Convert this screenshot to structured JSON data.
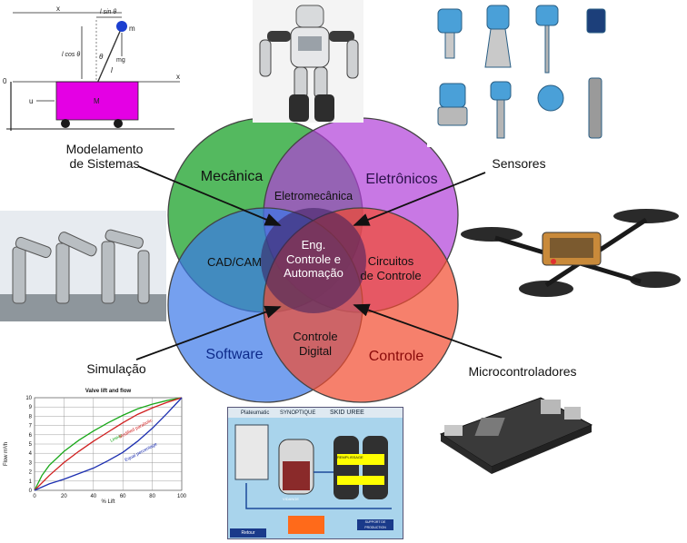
{
  "venn": {
    "mecanica": "Mecânica",
    "eletronicos": "Eletrônicos",
    "software": "Software",
    "controle": "Controle",
    "eletromecanica": "Eletromecânica",
    "cadcam": "CAD/CAM",
    "circuitos_1": "Circuitos",
    "circuitos_2": "de Controle",
    "controle_digital_1": "Controle",
    "controle_digital_2": "Digital",
    "center_1": "Eng.",
    "center_2": "Controle e",
    "center_3": "Automação",
    "colors": {
      "mecanica": "#2eaa3c",
      "eletronicos": "#b13fd9",
      "software": "#3a78e8",
      "controle": "#f24a2e"
    }
  },
  "callouts": {
    "modelamento_1": "Modelamento",
    "modelamento_2": "de Sistemas",
    "sensores": "Sensores",
    "simulacao": "Simulação",
    "microcontroladores": "Microcontroladores"
  },
  "cart_diagram": {
    "x_label": "x",
    "lsin_label": "l sin θ",
    "lcos_label": "l cos θ",
    "m_label": "m",
    "mg_label": "mg",
    "theta_label": "θ",
    "l_label": "l",
    "u_label": "u",
    "M_label": "M",
    "zero_label": "0",
    "x_axis_label": "x"
  },
  "chart_data": {
    "type": "line",
    "title": "Valve lift and flow",
    "xlabel": "% Lift",
    "ylabel": "Flow m³/h",
    "xlim": [
      0,
      100
    ],
    "ylim": [
      0,
      10
    ],
    "xticks": [
      "0",
      "20",
      "40",
      "60",
      "80",
      "100"
    ],
    "yticks": [
      "0",
      "1",
      "2",
      "3",
      "4",
      "5",
      "6",
      "7",
      "8",
      "9",
      "10"
    ],
    "grid": true,
    "series": [
      {
        "name": "Linear",
        "color": "#1aa81a",
        "x": [
          0,
          5,
          10,
          20,
          30,
          40,
          50,
          60,
          70,
          80,
          90,
          100
        ],
        "y": [
          0,
          1.6,
          2.7,
          4.2,
          5.4,
          6.4,
          7.3,
          8.1,
          8.8,
          9.3,
          9.7,
          10
        ]
      },
      {
        "name": "Modified parabolic",
        "color": "#d02020",
        "x": [
          0,
          10,
          20,
          30,
          40,
          50,
          60,
          70,
          80,
          90,
          100
        ],
        "y": [
          0,
          1.6,
          3.0,
          4.2,
          5.3,
          6.3,
          7.3,
          8.2,
          8.9,
          9.5,
          10
        ]
      },
      {
        "name": "Equal percentage",
        "color": "#1c2fb0",
        "x": [
          0,
          10,
          20,
          30,
          40,
          50,
          60,
          70,
          80,
          90,
          100
        ],
        "y": [
          0,
          0.7,
          1.2,
          1.8,
          2.4,
          3.2,
          4.1,
          5.3,
          6.7,
          8.3,
          10
        ]
      }
    ]
  },
  "scada": {
    "brand": "Plateumatic",
    "screen_title": "SKID UREE",
    "menu": "SYNOPTIQUE",
    "tank1": "VIDANGE",
    "tank2": "REMPLISSAGE",
    "button1": "Retour",
    "button2": "SUPPORT DE PRODUCTION"
  }
}
